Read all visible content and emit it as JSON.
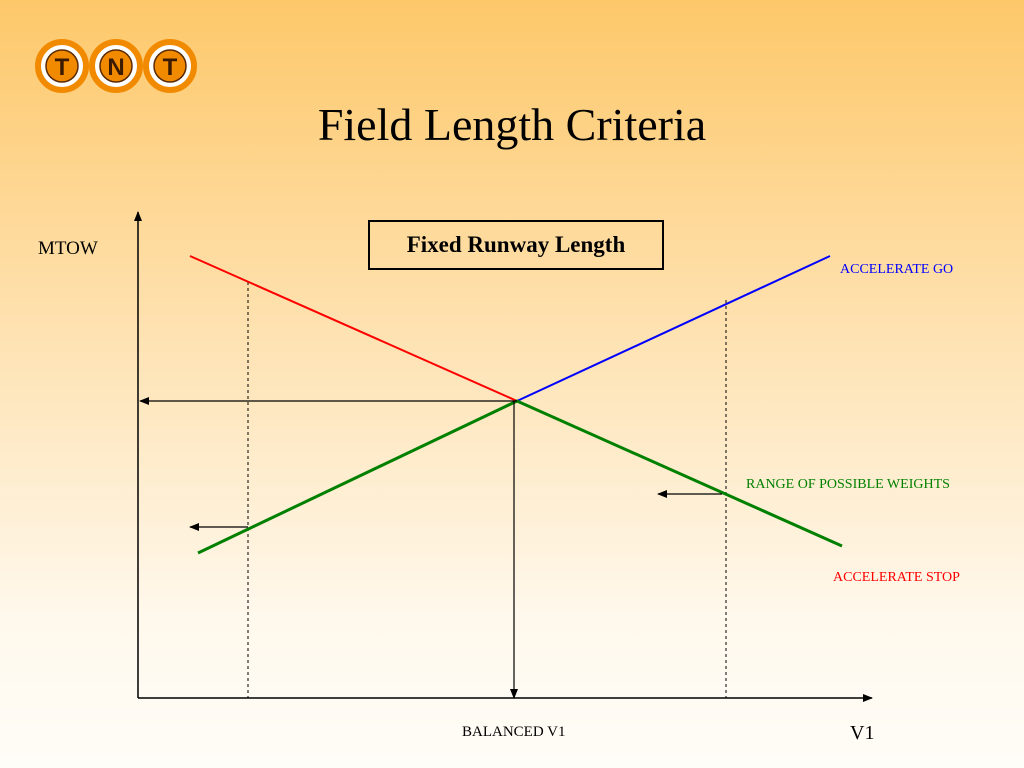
{
  "logo": {
    "letters": [
      "T",
      "N",
      "T"
    ]
  },
  "title": "Field Length Criteria",
  "box_label": "Fixed Runway Length",
  "y_axis_label": "MTOW",
  "x_axis_label": "V1",
  "x_marker_label": "BALANCED V1",
  "series": {
    "accelerate_go": {
      "label": "ACCELERATE GO",
      "color": "#0000ff"
    },
    "accelerate_stop": {
      "label": "ACCELERATE STOP",
      "color": "#ff0000"
    },
    "range": {
      "label": "RANGE OF POSSIBLE WEIGHTS",
      "color": "#008000"
    }
  },
  "colors": {
    "background_top": "#fdc86a",
    "background_bottom": "#fffdf8",
    "logo_orange": "#f28a00"
  }
}
